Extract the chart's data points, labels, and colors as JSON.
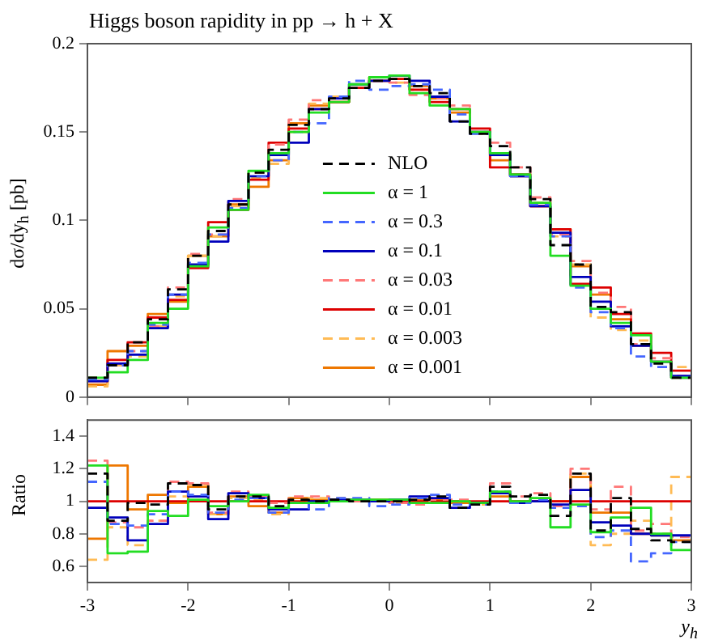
{
  "chart_data": [
    {
      "type": "histogram",
      "title": "Higgs boson rapidity in pp → h + X",
      "ylabel": "dσ/dy$_{h}$ [pb]",
      "bins": [
        -3,
        -2.8,
        -2.6,
        -2.4,
        -2.2,
        -2,
        -1.8,
        -1.6,
        -1.4,
        -1.2,
        -1,
        -0.8,
        -0.6,
        -0.4,
        -0.2,
        0,
        0.2,
        0.4,
        0.6,
        0.8,
        1,
        1.2,
        1.4,
        1.6,
        1.8,
        2,
        2.2,
        2.4,
        2.6,
        2.8,
        3
      ],
      "xlim": [
        -3,
        3
      ],
      "xticks": [
        -3,
        -2,
        -1,
        0,
        1,
        2,
        3
      ],
      "ylim": [
        0,
        0.2
      ],
      "yticks": [
        0,
        0.05,
        0.1,
        0.15,
        0.2
      ],
      "tick_labels": "y",
      "legend": "bottom",
      "series": [
        {
          "name": "NLO",
          "color": "#000000",
          "line_style": "dashed",
          "values": [
            0.011,
            0.018,
            0.031,
            0.044,
            0.061,
            0.08,
            0.094,
            0.109,
            0.127,
            0.14,
            0.154,
            0.163,
            0.169,
            0.175,
            0.179,
            0.18,
            0.176,
            0.172,
            0.156,
            0.149,
            0.142,
            0.13,
            0.112,
            0.086,
            0.075,
            0.051,
            0.048,
            0.03,
            0.019,
            0.011
          ]
        },
        {
          "name": "α = 1",
          "color": "#22dd22",
          "line_style": "solid",
          "values": [
            0.011,
            0.014,
            0.021,
            0.042,
            0.05,
            0.074,
            0.096,
            0.106,
            0.128,
            0.138,
            0.15,
            0.161,
            0.167,
            0.177,
            0.181,
            0.182,
            0.172,
            0.165,
            0.163,
            0.15,
            0.138,
            0.126,
            0.11,
            0.08,
            0.063,
            0.05,
            0.042,
            0.035,
            0.02,
            0.011
          ]
        },
        {
          "name": "α = 0.3",
          "color": "#4466ff",
          "line_style": "dashed",
          "values": [
            0.01,
            0.018,
            0.026,
            0.041,
            0.058,
            0.076,
            0.092,
            0.107,
            0.125,
            0.134,
            0.15,
            0.155,
            0.17,
            0.179,
            0.174,
            0.176,
            0.177,
            0.174,
            0.16,
            0.149,
            0.138,
            0.125,
            0.109,
            0.091,
            0.062,
            0.048,
            0.039,
            0.023,
            0.017,
            0.011
          ]
        },
        {
          "name": "α = 0.1",
          "color": "#0000bb",
          "line_style": "solid",
          "values": [
            0.009,
            0.019,
            0.024,
            0.039,
            0.058,
            0.075,
            0.088,
            0.111,
            0.125,
            0.137,
            0.144,
            0.163,
            0.169,
            0.177,
            0.179,
            0.182,
            0.179,
            0.17,
            0.156,
            0.15,
            0.137,
            0.125,
            0.108,
            0.093,
            0.068,
            0.054,
            0.04,
            0.029,
            0.02,
            0.012
          ]
        },
        {
          "name": "α = 0.03",
          "color": "#ff7777",
          "line_style": "dashed",
          "values": [
            0.011,
            0.018,
            0.026,
            0.04,
            0.062,
            0.081,
            0.092,
            0.112,
            0.127,
            0.143,
            0.157,
            0.168,
            0.169,
            0.175,
            0.179,
            0.178,
            0.171,
            0.169,
            0.165,
            0.15,
            0.144,
            0.13,
            0.113,
            0.092,
            0.077,
            0.059,
            0.051,
            0.03,
            0.022,
            0.012
          ]
        },
        {
          "name": "α = 0.01",
          "color": "#dd0000",
          "line_style": "solid",
          "values": [
            0.009,
            0.021,
            0.031,
            0.045,
            0.055,
            0.073,
            0.099,
            0.106,
            0.123,
            0.144,
            0.152,
            0.163,
            0.167,
            0.175,
            0.179,
            0.18,
            0.174,
            0.167,
            0.163,
            0.152,
            0.13,
            0.126,
            0.108,
            0.095,
            0.064,
            0.062,
            0.047,
            0.036,
            0.025,
            0.015
          ]
        },
        {
          "name": "α = 0.003",
          "color": "#ffbb55",
          "line_style": "dashed",
          "values": [
            0.006,
            0.018,
            0.023,
            0.04,
            0.057,
            0.08,
            0.091,
            0.108,
            0.124,
            0.132,
            0.15,
            0.166,
            0.17,
            0.175,
            0.179,
            0.178,
            0.174,
            0.17,
            0.163,
            0.149,
            0.137,
            0.126,
            0.11,
            0.091,
            0.075,
            0.045,
            0.038,
            0.032,
            0.02,
            0.017
          ]
        },
        {
          "name": "α = 0.001",
          "color": "#ee7700",
          "line_style": "solid",
          "values": [
            0.007,
            0.026,
            0.029,
            0.047,
            0.054,
            0.08,
            0.091,
            0.109,
            0.119,
            0.134,
            0.155,
            0.165,
            0.167,
            0.175,
            0.181,
            0.18,
            0.176,
            0.169,
            0.161,
            0.15,
            0.134,
            0.125,
            0.108,
            0.095,
            0.074,
            0.058,
            0.044,
            0.029,
            0.02,
            0.011
          ]
        }
      ]
    },
    {
      "type": "histogram",
      "ylabel": "Ratio",
      "xlabel": "y$_{h}$",
      "bins": [
        -3,
        -2.8,
        -2.6,
        -2.4,
        -2.2,
        -2,
        -1.8,
        -1.6,
        -1.4,
        -1.2,
        -1,
        -0.8,
        -0.6,
        -0.4,
        -0.2,
        0,
        0.2,
        0.4,
        0.6,
        0.8,
        1,
        1.2,
        1.4,
        1.6,
        1.8,
        2,
        2.2,
        2.4,
        2.6,
        2.8,
        3
      ],
      "xlim": [
        -3,
        3
      ],
      "xticks": [
        -3,
        -2,
        -1,
        0,
        1,
        2,
        3
      ],
      "ylim": [
        0.5,
        1.5
      ],
      "yticks": [
        0.6,
        0.8,
        1,
        1.2,
        1.4
      ],
      "series": [
        {
          "color": "#000000",
          "line_style": "dashed",
          "values": [
            1.17,
            0.88,
            0.99,
            0.98,
            1.11,
            1.1,
            0.95,
            1.03,
            1.03,
            0.97,
            1.01,
            1.0,
            1.01,
            1.0,
            1.0,
            1.0,
            1.01,
            1.03,
            0.96,
            0.98,
            1.09,
            1.03,
            1.04,
            0.91,
            1.17,
            0.82,
            1.02,
            0.83,
            0.76,
            0.75
          ]
        },
        {
          "color": "#22dd22",
          "line_style": "solid",
          "values": [
            1.22,
            0.68,
            0.69,
            0.94,
            0.91,
            1.01,
            0.97,
            1.0,
            1.04,
            0.96,
            0.99,
            0.99,
            1.0,
            1.01,
            1.01,
            1.01,
            0.99,
            0.99,
            1.0,
            0.99,
            1.06,
            1.0,
            1.02,
            0.84,
            0.98,
            0.81,
            0.9,
            0.96,
            0.8,
            0.7
          ]
        },
        {
          "color": "#4466ff",
          "line_style": "dashed",
          "values": [
            1.12,
            0.86,
            0.85,
            0.92,
            1.06,
            1.04,
            0.93,
            1.01,
            1.02,
            0.93,
            0.99,
            0.95,
            1.02,
            1.02,
            0.97,
            0.98,
            1.02,
            1.04,
            0.98,
            0.98,
            1.06,
            0.99,
            1.01,
            0.96,
            0.97,
            0.78,
            0.82,
            0.63,
            0.68,
            0.75
          ]
        },
        {
          "color": "#0000bb",
          "line_style": "solid",
          "values": [
            0.96,
            0.9,
            0.76,
            0.86,
            1.06,
            1.03,
            0.89,
            1.05,
            1.02,
            0.95,
            0.95,
            1.0,
            1.01,
            1.01,
            1.0,
            1.01,
            1.03,
            1.02,
            0.96,
            0.99,
            1.05,
            0.99,
            1.0,
            0.98,
            1.07,
            0.87,
            0.85,
            0.8,
            0.79,
            0.79
          ]
        },
        {
          "color": "#ff7777",
          "line_style": "dashed",
          "values": [
            1.25,
            0.87,
            0.84,
            0.88,
            1.12,
            1.11,
            0.93,
            1.06,
            1.03,
            0.99,
            1.03,
            1.03,
            1.01,
            1.0,
            1.0,
            0.99,
            0.98,
            1.01,
            1.01,
            0.99,
            1.11,
            1.03,
            1.05,
            0.97,
            1.2,
            0.95,
            1.09,
            0.82,
            0.86,
            0.78
          ]
        },
        {
          "color": "#dd0000",
          "line_style": "solid",
          "values": [
            1,
            1,
            1,
            1,
            1,
            1,
            1,
            1,
            1,
            1,
            1,
            1,
            1,
            1,
            1,
            1,
            1,
            1,
            1,
            1,
            1,
            1,
            1,
            1,
            1,
            1,
            1,
            1,
            1,
            1
          ]
        },
        {
          "color": "#ffbb55",
          "line_style": "dashed",
          "values": [
            0.64,
            0.84,
            0.73,
            0.88,
            1.03,
            1.1,
            0.92,
            1.02,
            1.01,
            0.92,
            0.99,
            1.02,
            1.02,
            1.0,
            1.0,
            0.99,
            1.0,
            1.02,
            1.0,
            0.98,
            1.05,
            1.0,
            1.02,
            0.96,
            1.17,
            0.73,
            0.8,
            0.88,
            0.8,
            1.15
          ]
        },
        {
          "color": "#ee7700",
          "line_style": "solid",
          "values": [
            0.77,
            1.22,
            0.95,
            1.04,
            0.99,
            1.09,
            0.92,
            1.03,
            0.97,
            0.93,
            1.02,
            1.01,
            1.0,
            1.0,
            1.01,
            1.0,
            1.01,
            1.01,
            0.99,
            0.99,
            1.03,
            0.99,
            1.0,
            1.0,
            1.15,
            0.93,
            0.93,
            0.8,
            0.79,
            0.76
          ]
        }
      ]
    }
  ]
}
